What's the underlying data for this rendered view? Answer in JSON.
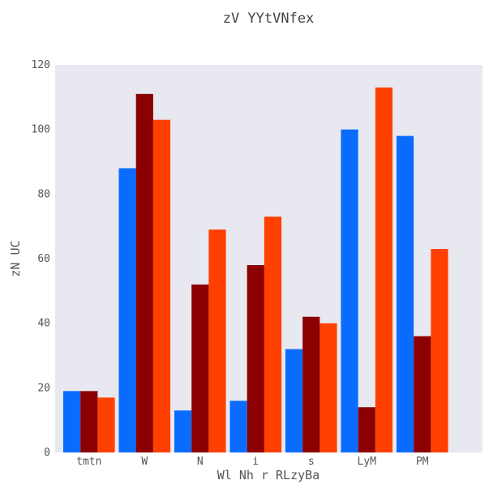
{
  "chart_data": {
    "type": "bar",
    "title": "zV YYtVNfex",
    "xlabel": "Wl Nh r RLzyBa",
    "ylabel": "zN UC",
    "categories": [
      "tmtn",
      "W",
      "N",
      "i",
      "s",
      "LyM",
      "PM"
    ],
    "series": [
      {
        "values": [
          19,
          88,
          13,
          16,
          32,
          100,
          98
        ],
        "color": "#0a6cff"
      },
      {
        "values": [
          19,
          111,
          52,
          58,
          42,
          14,
          36
        ],
        "color": "#8b0000"
      },
      {
        "values": [
          17,
          103,
          69,
          73,
          40,
          113,
          63
        ],
        "color": "#ff4000"
      }
    ],
    "ylim": [
      0,
      120
    ],
    "yticks": [
      0,
      20,
      40,
      60,
      80,
      100,
      120
    ],
    "grid": false,
    "legend": "none",
    "plot_background": "#e8e8f0"
  }
}
